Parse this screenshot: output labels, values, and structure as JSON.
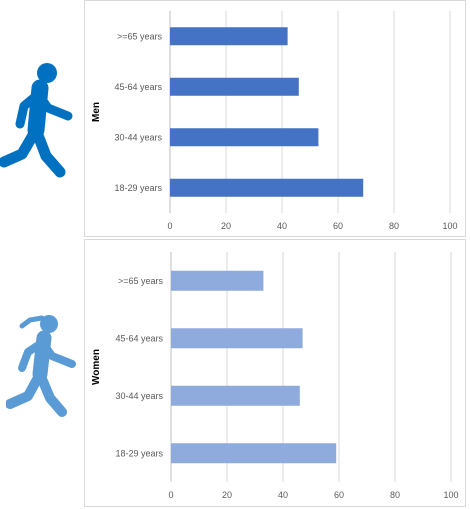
{
  "chart_data": [
    {
      "type": "bar",
      "orientation": "horizontal",
      "ylabel": "Men",
      "categories": [
        ">=65 years",
        "45-64 years",
        "30-44 years",
        "18-29 years"
      ],
      "values": [
        42,
        46,
        53,
        69
      ],
      "xlim": [
        0,
        100
      ],
      "xticks": [
        "0",
        "20",
        "40",
        "60",
        "80",
        "100"
      ],
      "grid": true,
      "color": "#4472c4"
    },
    {
      "type": "bar",
      "orientation": "horizontal",
      "ylabel": "Women",
      "categories": [
        ">=65 years",
        "45-64 years",
        "30-44 years",
        "18-29 years"
      ],
      "values": [
        33,
        47,
        46,
        59
      ],
      "xlim": [
        0,
        100
      ],
      "xticks": [
        "0",
        "20",
        "40",
        "60",
        "80",
        "100"
      ],
      "grid": true,
      "color": "#8faadc"
    }
  ],
  "icons": {
    "men": {
      "name": "running-man-icon",
      "color": "#0070c0"
    },
    "women": {
      "name": "running-woman-icon",
      "color": "#5b9bd5"
    }
  }
}
